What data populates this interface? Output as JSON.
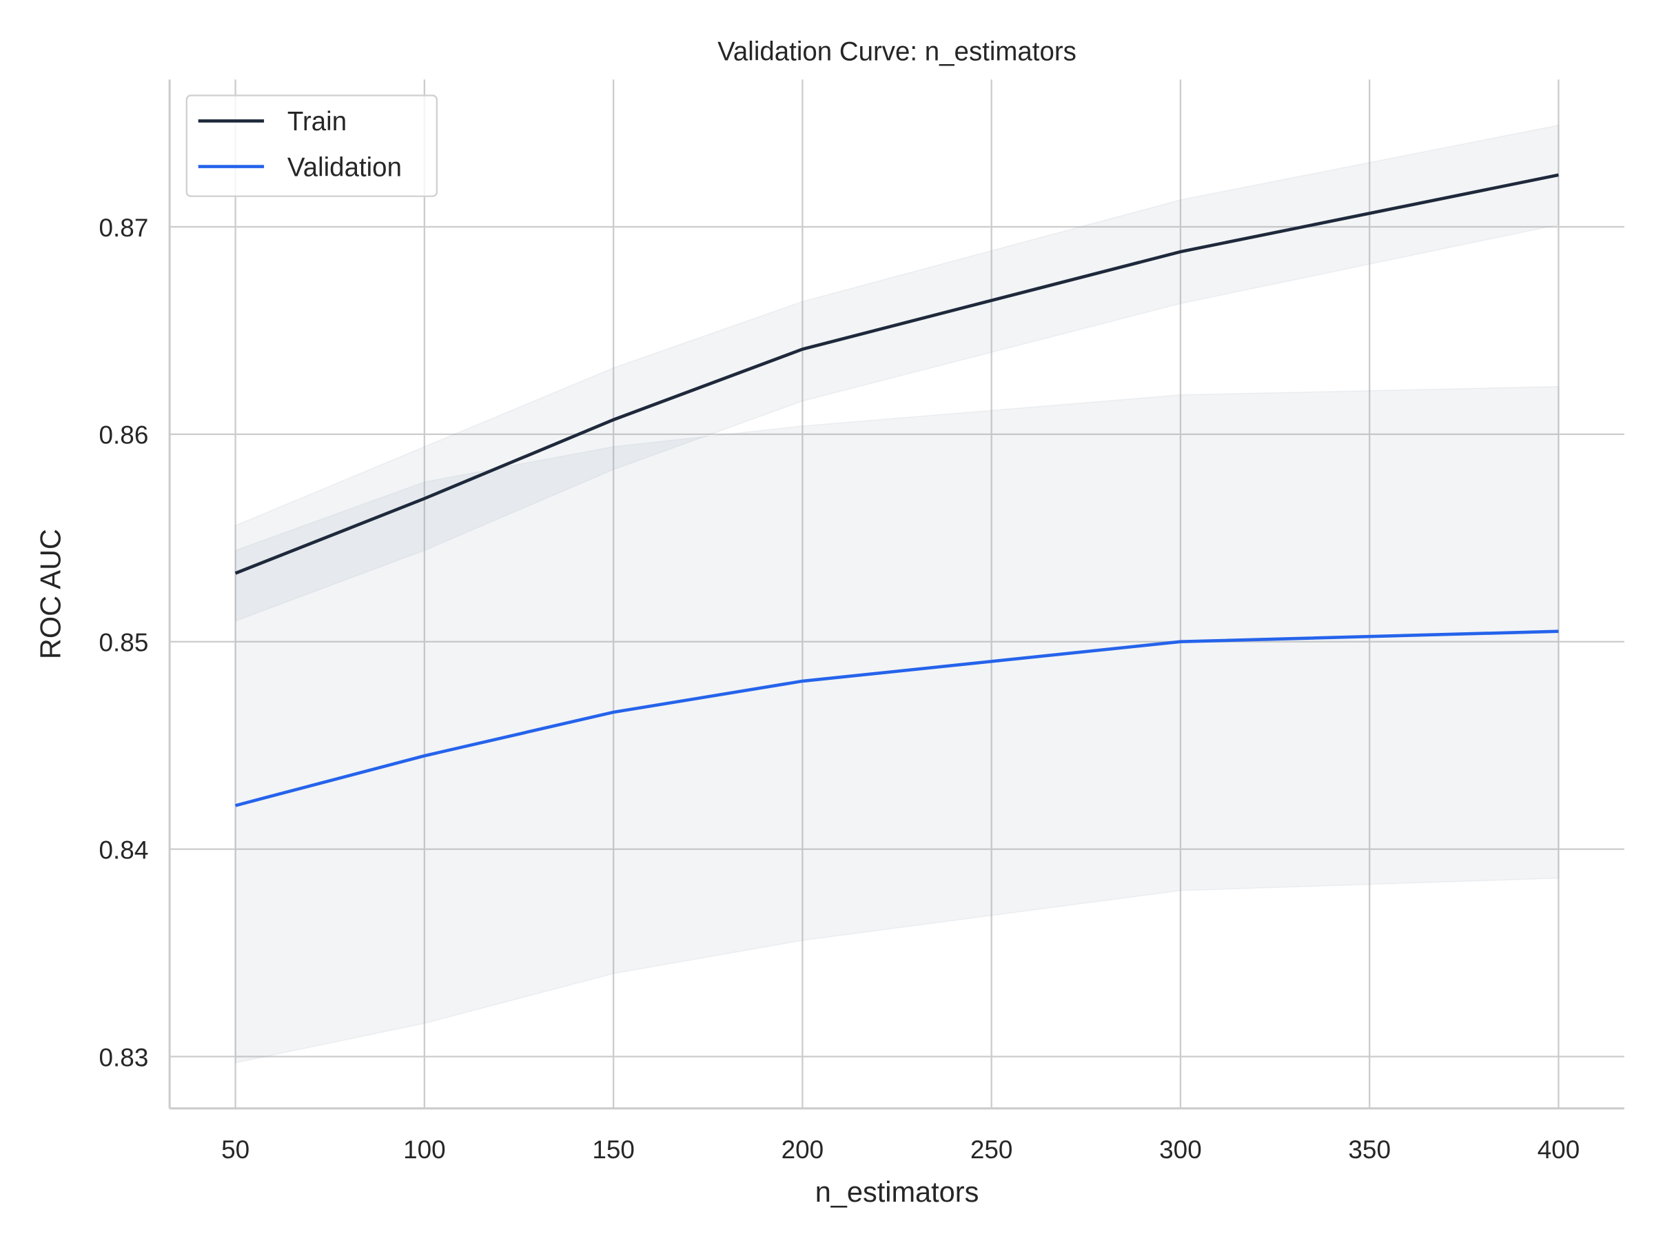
{
  "chart_data": {
    "type": "line",
    "title": "Validation Curve: n_estimators",
    "xlabel": "n_estimators",
    "ylabel": "ROC AUC",
    "x": [
      50,
      100,
      150,
      200,
      300,
      400
    ],
    "xlim": [
      32.6,
      417.4
    ],
    "ylim": [
      0.8275,
      0.8771
    ],
    "xticks": [
      "50",
      "100",
      "150",
      "200",
      "250",
      "300",
      "350",
      "400"
    ],
    "xtick_values": [
      50,
      100,
      150,
      200,
      250,
      300,
      350,
      400
    ],
    "yticks": [
      "0.83",
      "0.84",
      "0.85",
      "0.86",
      "0.87"
    ],
    "ytick_values": [
      0.83,
      0.84,
      0.85,
      0.86,
      0.87
    ],
    "grid": true,
    "legend_position": "upper-left",
    "series": [
      {
        "name": "Train",
        "color": "#1e293b",
        "values": [
          0.8533,
          0.8569,
          0.8607,
          0.8641,
          0.8688,
          0.8725
        ],
        "band_upper": [
          0.8556,
          0.8594,
          0.8632,
          0.8664,
          0.8713,
          0.8749
        ],
        "band_lower": [
          0.851,
          0.8544,
          0.8583,
          0.8616,
          0.8663,
          0.8701
        ]
      },
      {
        "name": "Validation",
        "color": "#2563eb",
        "values": [
          0.8421,
          0.8445,
          0.8466,
          0.8481,
          0.85,
          0.8505
        ],
        "band_upper": [
          0.8544,
          0.8577,
          0.8594,
          0.8604,
          0.8619,
          0.8623
        ],
        "band_lower": [
          0.8297,
          0.8316,
          0.834,
          0.8356,
          0.838,
          0.8386
        ]
      }
    ],
    "band_color": "#94a3b8"
  }
}
